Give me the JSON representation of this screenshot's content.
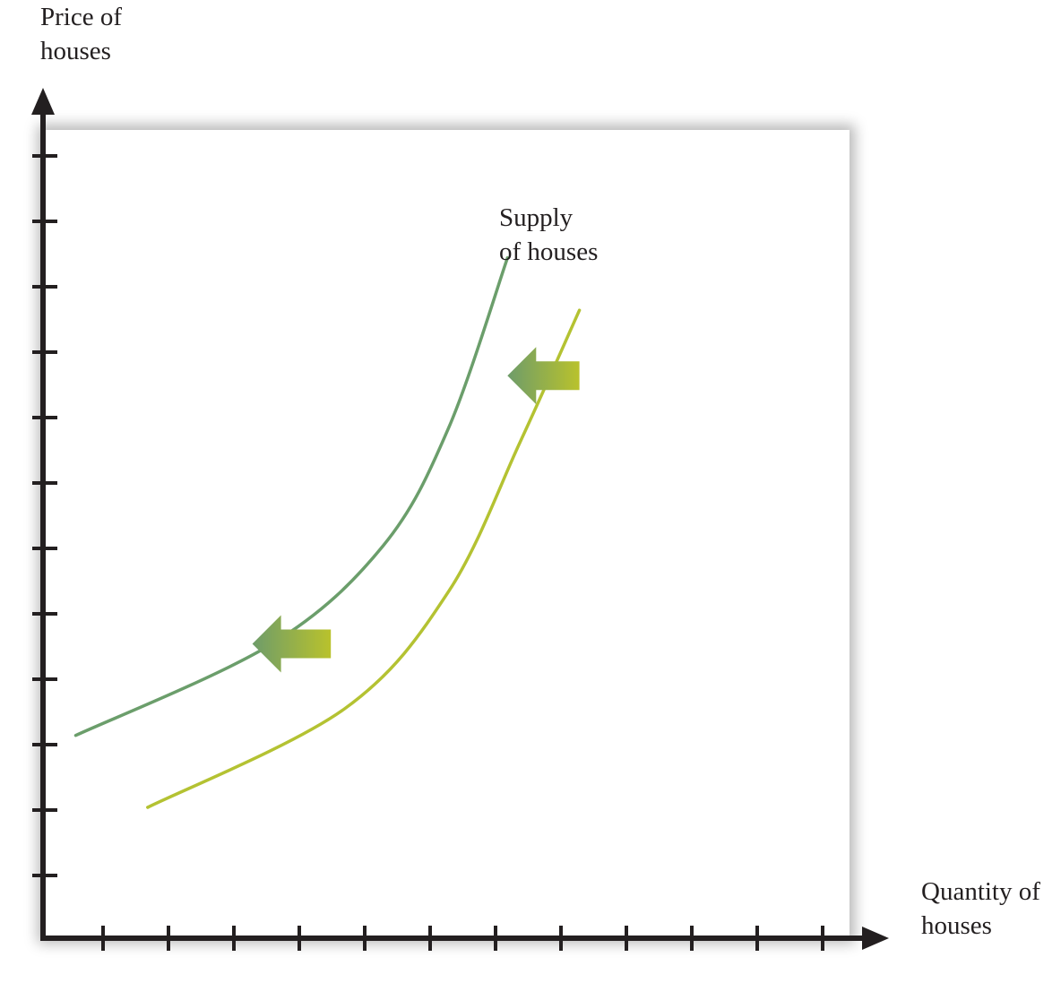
{
  "chart_data": {
    "type": "line",
    "ylabel_lines": [
      "Price of",
      "houses"
    ],
    "xlabel_lines": [
      "Quantity of",
      "houses"
    ],
    "series_label_lines": [
      "Supply",
      "of houses"
    ],
    "x_tick_count": 12,
    "y_tick_count": 12,
    "tick_labels": false,
    "grid": false,
    "series": [
      {
        "color": "#6b9e6b",
        "role": "shifted",
        "points": [
          [
            0.5,
            3.1
          ],
          [
            3.5,
            4.5
          ],
          [
            5.2,
            6.0
          ],
          [
            6.2,
            7.8
          ],
          [
            7.1,
            10.4
          ]
        ]
      },
      {
        "color": "#b4c232",
        "role": "original",
        "points": [
          [
            1.6,
            2.0
          ],
          [
            4.6,
            3.5
          ],
          [
            6.2,
            5.3
          ],
          [
            7.3,
            7.6
          ],
          [
            8.2,
            9.6
          ]
        ]
      }
    ],
    "arrows": [
      {
        "direction": "left",
        "from_x": 8.2,
        "to_x": 7.1,
        "y": 8.6
      },
      {
        "direction": "left",
        "from_x": 4.4,
        "to_x": 3.2,
        "y": 4.5
      }
    ],
    "arrow_colors": [
      "#6e9c6a",
      "#b9c22c"
    ],
    "axis_color": "#231f20"
  }
}
